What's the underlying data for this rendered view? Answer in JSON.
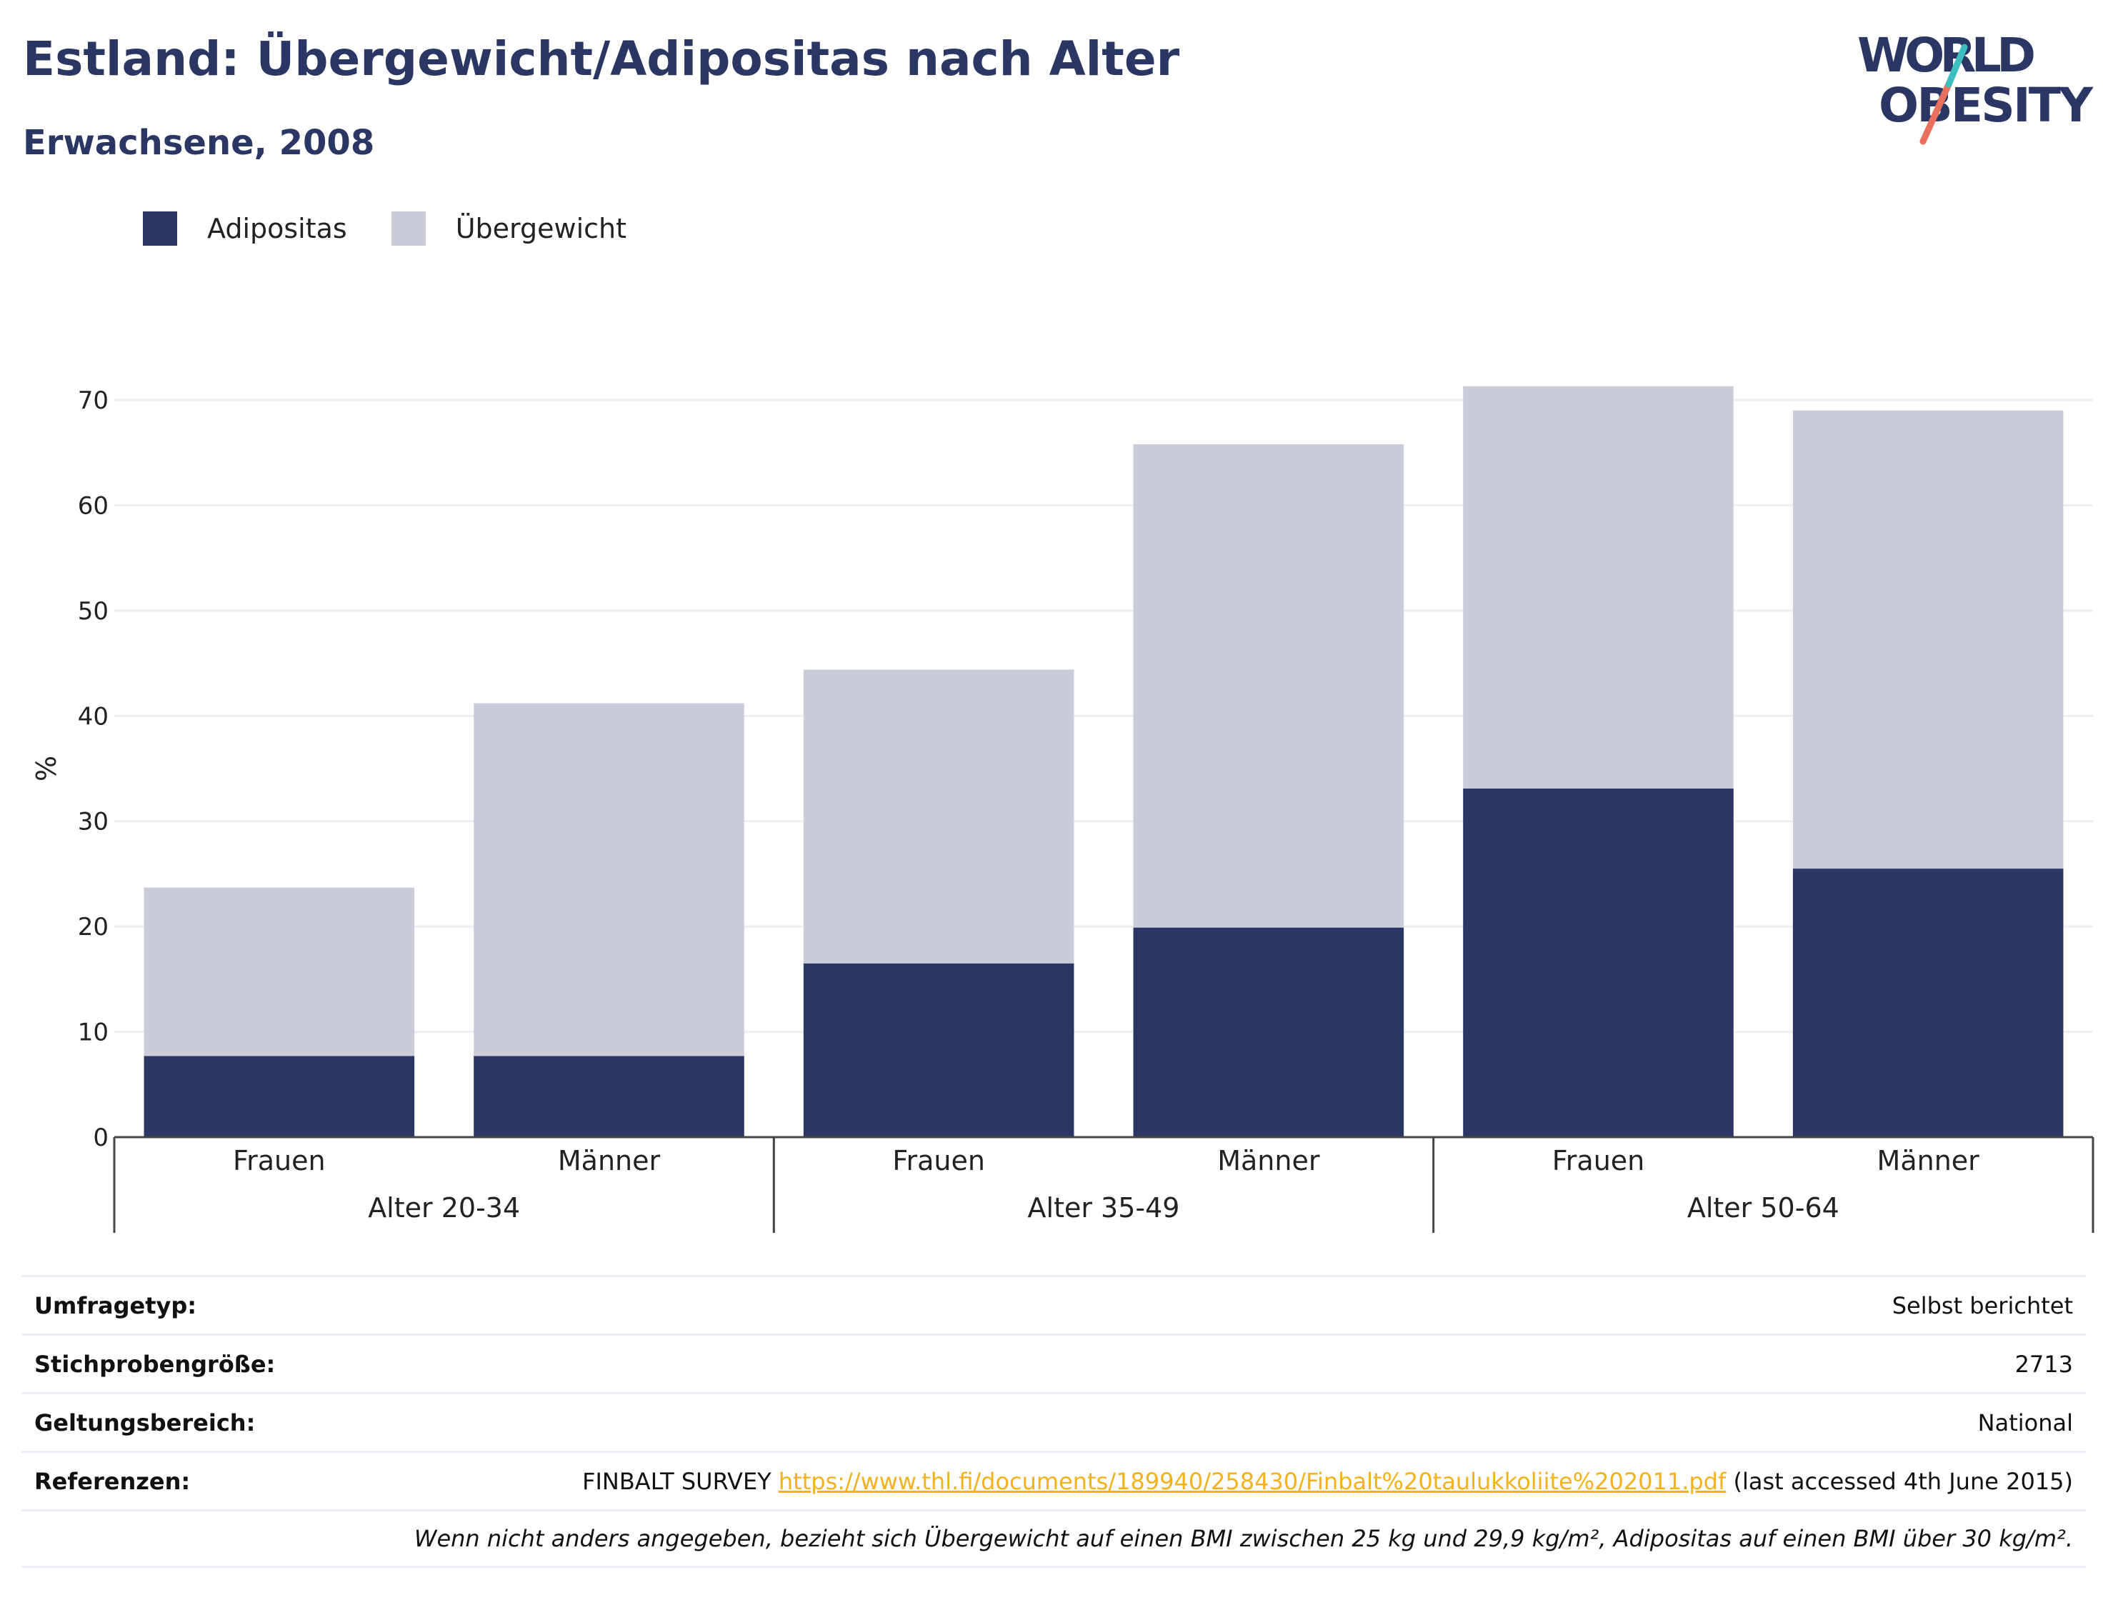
{
  "header": {
    "title": "Estland: Übergewicht/Adipositas nach Alter",
    "subtitle": "Erwachsene, 2008"
  },
  "logo": {
    "line1": "WORLD",
    "line2": "OBESITY"
  },
  "colors": {
    "adipositas": "#2a3663",
    "uebergewicht": "#cacdd9",
    "link": "#f2b21b",
    "grid": "#eceef3",
    "axis": "#444444"
  },
  "chart_data": {
    "type": "bar",
    "stacked": true,
    "ylabel": "%",
    "ylim": [
      0,
      70
    ],
    "yticks": [
      0,
      10,
      20,
      30,
      40,
      50,
      60,
      70
    ],
    "grid": true,
    "legend_position": "top-left",
    "groups": [
      "Alter 20-34",
      "Alter 35-49",
      "Alter 50-64"
    ],
    "categories": [
      "Frauen",
      "Männer",
      "Frauen",
      "Männer",
      "Frauen",
      "Männer"
    ],
    "series": [
      {
        "name": "Adipositas",
        "color": "#2a3663",
        "values": [
          7.7,
          7.7,
          16.5,
          19.9,
          33.1,
          25.5
        ]
      },
      {
        "name": "Übergewicht",
        "color": "#cacdd9",
        "values": [
          16.0,
          33.5,
          27.9,
          45.9,
          38.2,
          43.5
        ]
      }
    ]
  },
  "meta": {
    "rows": [
      {
        "label": "Umfragetyp:",
        "value": "Selbst berichtet"
      },
      {
        "label": "Stichprobengröße:",
        "value": "2713"
      },
      {
        "label": "Geltungsbereich:",
        "value": "National"
      }
    ],
    "references": {
      "label": "Referenzen:",
      "prefix": "FINBALT SURVEY ",
      "link": "https://www.thl.fi/documents/189940/258430/Finbalt%20taulukkoliite%202011.pdf",
      "suffix": " (last accessed 4th June 2015)"
    },
    "note": "Wenn nicht anders angegeben, bezieht sich Übergewicht auf einen BMI zwischen 25 kg und 29,9 kg/m², Adipositas auf einen BMI über 30 kg/m²."
  }
}
